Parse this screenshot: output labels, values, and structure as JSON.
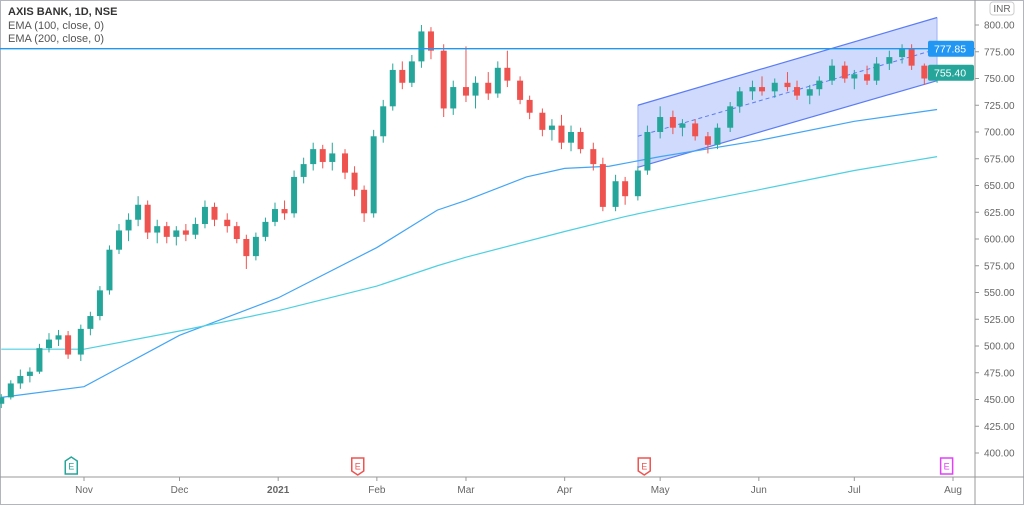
{
  "legend": {
    "title": "AXIS BANK, 1D, NSE",
    "studies": [
      "EMA (100, close, 0)",
      "EMA (200, close, 0)"
    ]
  },
  "currency_label": "INR",
  "colors": {
    "up": "#26a69a",
    "down": "#ef5350",
    "ema100": "#42a5f5",
    "ema200": "#4dd0e1",
    "hline": "#2196f3",
    "channel": "#5b7cf5",
    "channel_fill": "#c7d3fb"
  },
  "chart_data": {
    "type": "candlestick",
    "title": "AXIS BANK, 1D, NSE",
    "ylim": [
      380,
      815
    ],
    "y_ticks": [
      "400.00",
      "425.00",
      "450.00",
      "475.00",
      "500.00",
      "525.00",
      "550.00",
      "575.00",
      "600.00",
      "625.00",
      "650.00",
      "675.00",
      "700.00",
      "725.00",
      "750.00",
      "775.00",
      "800.00"
    ],
    "x_ticks": [
      {
        "date": "2020-11-01",
        "label": "Nov"
      },
      {
        "date": "2020-12-01",
        "label": "Dec"
      },
      {
        "date": "2021-01-01",
        "label": "2021",
        "bold": true
      },
      {
        "date": "2021-02-01",
        "label": "Feb"
      },
      {
        "date": "2021-03-01",
        "label": "Mar"
      },
      {
        "date": "2021-04-01",
        "label": "Apr"
      },
      {
        "date": "2021-05-01",
        "label": "May"
      },
      {
        "date": "2021-06-01",
        "label": "Jun"
      },
      {
        "date": "2021-07-01",
        "label": "Jul"
      },
      {
        "date": "2021-08-01",
        "label": "Aug"
      }
    ],
    "candles": [
      [
        "2020-10-06",
        446,
        455,
        442,
        452
      ],
      [
        "2020-10-09",
        452,
        468,
        450,
        465
      ],
      [
        "2020-10-12",
        465,
        478,
        460,
        472
      ],
      [
        "2020-10-15",
        472,
        480,
        466,
        476
      ],
      [
        "2020-10-18",
        476,
        502,
        474,
        498
      ],
      [
        "2020-10-21",
        498,
        512,
        494,
        506
      ],
      [
        "2020-10-24",
        506,
        515,
        500,
        510
      ],
      [
        "2020-10-27",
        510,
        514,
        488,
        492
      ],
      [
        "2020-10-31",
        492,
        520,
        486,
        516
      ],
      [
        "2020-11-03",
        516,
        532,
        510,
        528
      ],
      [
        "2020-11-06",
        528,
        556,
        524,
        552
      ],
      [
        "2020-11-09",
        552,
        594,
        548,
        590
      ],
      [
        "2020-11-12",
        590,
        614,
        586,
        608
      ],
      [
        "2020-11-15",
        608,
        624,
        598,
        618
      ],
      [
        "2020-11-18",
        618,
        640,
        612,
        632
      ],
      [
        "2020-11-21",
        632,
        636,
        600,
        606
      ],
      [
        "2020-11-24",
        606,
        618,
        596,
        612
      ],
      [
        "2020-11-27",
        612,
        616,
        596,
        602
      ],
      [
        "2020-11-30",
        602,
        612,
        594,
        608
      ],
      [
        "2020-12-03",
        608,
        614,
        598,
        604
      ],
      [
        "2020-12-06",
        604,
        620,
        600,
        614
      ],
      [
        "2020-12-09",
        614,
        636,
        610,
        630
      ],
      [
        "2020-12-12",
        630,
        634,
        612,
        618
      ],
      [
        "2020-12-16",
        618,
        624,
        606,
        612
      ],
      [
        "2020-12-19",
        612,
        616,
        596,
        600
      ],
      [
        "2020-12-22",
        600,
        604,
        572,
        584
      ],
      [
        "2020-12-25",
        584,
        606,
        580,
        602
      ],
      [
        "2020-12-28",
        602,
        620,
        598,
        616
      ],
      [
        "2020-12-31",
        616,
        634,
        612,
        628
      ],
      [
        "2021-01-03",
        628,
        636,
        618,
        624
      ],
      [
        "2021-01-06",
        624,
        664,
        620,
        658
      ],
      [
        "2021-01-09",
        658,
        676,
        652,
        670
      ],
      [
        "2021-01-12",
        670,
        690,
        664,
        684
      ],
      [
        "2021-01-15",
        684,
        688,
        666,
        672
      ],
      [
        "2021-01-18",
        672,
        690,
        664,
        680
      ],
      [
        "2021-01-22",
        680,
        684,
        656,
        662
      ],
      [
        "2021-01-25",
        662,
        668,
        640,
        646
      ],
      [
        "2021-01-28",
        646,
        650,
        616,
        624
      ],
      [
        "2021-01-31",
        624,
        702,
        620,
        696
      ],
      [
        "2021-02-03",
        696,
        730,
        690,
        724
      ],
      [
        "2021-02-06",
        724,
        764,
        720,
        758
      ],
      [
        "2021-02-09",
        758,
        766,
        740,
        746
      ],
      [
        "2021-02-12",
        746,
        772,
        742,
        766
      ],
      [
        "2021-02-15",
        766,
        800,
        760,
        794
      ],
      [
        "2021-02-18",
        794,
        798,
        768,
        776
      ],
      [
        "2021-02-22",
        776,
        782,
        714,
        722
      ],
      [
        "2021-02-25",
        722,
        748,
        716,
        742
      ],
      [
        "2021-03-01",
        742,
        780,
        728,
        734
      ],
      [
        "2021-03-04",
        734,
        752,
        722,
        746
      ],
      [
        "2021-03-08",
        746,
        756,
        730,
        736
      ],
      [
        "2021-03-11",
        736,
        766,
        732,
        760
      ],
      [
        "2021-03-14",
        760,
        776,
        742,
        748
      ],
      [
        "2021-03-18",
        748,
        752,
        726,
        730
      ],
      [
        "2021-03-21",
        730,
        734,
        712,
        718
      ],
      [
        "2021-03-25",
        718,
        722,
        696,
        702
      ],
      [
        "2021-03-28",
        702,
        712,
        692,
        706
      ],
      [
        "2021-03-31",
        706,
        716,
        684,
        690
      ],
      [
        "2021-04-03",
        690,
        706,
        682,
        700
      ],
      [
        "2021-04-06",
        700,
        704,
        680,
        684
      ],
      [
        "2021-04-10",
        684,
        690,
        664,
        670
      ],
      [
        "2021-04-13",
        670,
        676,
        626,
        630
      ],
      [
        "2021-04-17",
        630,
        660,
        626,
        654
      ],
      [
        "2021-04-20",
        654,
        658,
        632,
        640
      ],
      [
        "2021-04-24",
        640,
        668,
        636,
        664
      ],
      [
        "2021-04-27",
        664,
        706,
        660,
        700
      ],
      [
        "2021-05-01",
        700,
        724,
        694,
        714
      ],
      [
        "2021-05-05",
        714,
        720,
        698,
        704
      ],
      [
        "2021-05-08",
        704,
        712,
        696,
        708
      ],
      [
        "2021-05-12",
        708,
        712,
        692,
        696
      ],
      [
        "2021-05-16",
        696,
        700,
        680,
        688
      ],
      [
        "2021-05-19",
        688,
        708,
        684,
        704
      ],
      [
        "2021-05-23",
        704,
        728,
        700,
        724
      ],
      [
        "2021-05-26",
        724,
        742,
        718,
        738
      ],
      [
        "2021-05-30",
        738,
        748,
        730,
        742
      ],
      [
        "2021-06-02",
        742,
        752,
        734,
        738
      ],
      [
        "2021-06-06",
        738,
        750,
        732,
        746
      ],
      [
        "2021-06-10",
        746,
        756,
        738,
        742
      ],
      [
        "2021-06-13",
        742,
        748,
        730,
        734
      ],
      [
        "2021-06-17",
        734,
        744,
        726,
        740
      ],
      [
        "2021-06-20",
        740,
        752,
        734,
        748
      ],
      [
        "2021-06-24",
        748,
        768,
        744,
        762
      ],
      [
        "2021-06-28",
        762,
        766,
        746,
        750
      ],
      [
        "2021-07-01",
        750,
        758,
        740,
        754
      ],
      [
        "2021-07-05",
        754,
        762,
        744,
        748
      ],
      [
        "2021-07-08",
        748,
        770,
        744,
        764
      ],
      [
        "2021-07-12",
        764,
        776,
        758,
        770
      ],
      [
        "2021-07-16",
        770,
        782,
        764,
        778
      ],
      [
        "2021-07-19",
        778,
        782,
        758,
        762
      ],
      [
        "2021-07-23",
        762,
        764,
        744,
        750
      ],
      [
        "2021-07-27",
        750,
        762,
        746,
        755.4
      ]
    ],
    "series": [
      {
        "name": "EMA (100, close, 0)",
        "points": [
          [
            "2020-10-06",
            452
          ],
          [
            "2020-11-01",
            462
          ],
          [
            "2020-12-01",
            510
          ],
          [
            "2021-01-01",
            545
          ],
          [
            "2021-02-01",
            592
          ],
          [
            "2021-02-20",
            627
          ],
          [
            "2021-03-01",
            636
          ],
          [
            "2021-03-20",
            658
          ],
          [
            "2021-04-01",
            666
          ],
          [
            "2021-04-15",
            668
          ],
          [
            "2021-05-01",
            677
          ],
          [
            "2021-06-01",
            692
          ],
          [
            "2021-07-01",
            710
          ],
          [
            "2021-07-27",
            721
          ]
        ]
      },
      {
        "name": "EMA (200, close, 0)",
        "points": [
          [
            "2020-10-06",
            497
          ],
          [
            "2020-11-01",
            497
          ],
          [
            "2020-12-01",
            514
          ],
          [
            "2021-01-01",
            533
          ],
          [
            "2021-02-01",
            556
          ],
          [
            "2021-02-20",
            575
          ],
          [
            "2021-03-01",
            583
          ],
          [
            "2021-04-01",
            607
          ],
          [
            "2021-04-20",
            621
          ],
          [
            "2021-05-01",
            628
          ],
          [
            "2021-06-01",
            646
          ],
          [
            "2021-07-01",
            664
          ],
          [
            "2021-07-27",
            677
          ]
        ]
      }
    ],
    "horizontal_line": {
      "value": 777.85,
      "label": "777.85"
    },
    "last_price": {
      "value": 755.4,
      "label": "755.40"
    },
    "channel": {
      "start": "2021-04-24",
      "end": "2021-07-27",
      "upper": [
        725,
        807
      ],
      "lower": [
        667,
        748
      ]
    },
    "earnings_markers": [
      {
        "date": "2020-10-28",
        "label": "E",
        "color": "#26a69a",
        "direction": "up"
      },
      {
        "date": "2021-01-26",
        "label": "E",
        "color": "#ef5350",
        "direction": "down"
      },
      {
        "date": "2021-04-26",
        "label": "E",
        "color": "#ef5350",
        "direction": "down"
      },
      {
        "date": "2021-07-30",
        "label": "E",
        "color": "#e040fb",
        "direction": "none"
      }
    ]
  }
}
